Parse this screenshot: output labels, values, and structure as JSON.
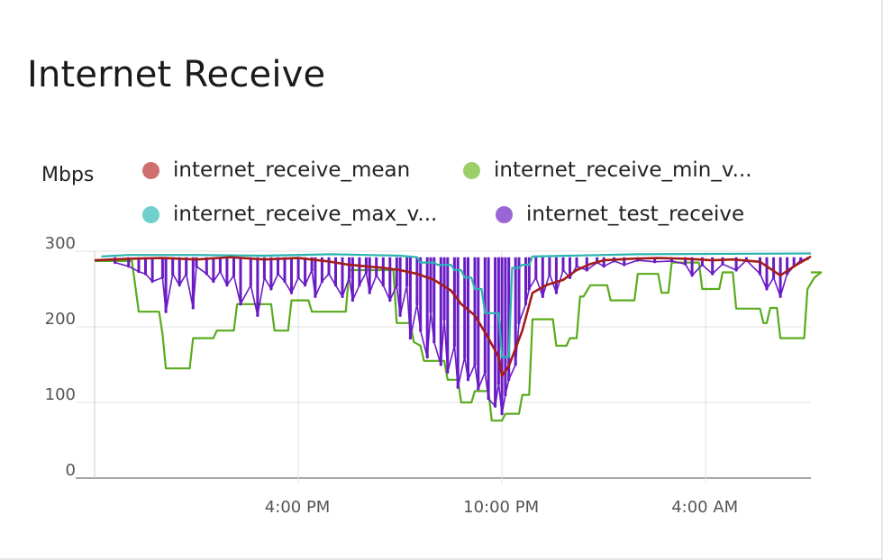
{
  "title": "Internet Receive",
  "chart_data": {
    "type": "line",
    "title": "Internet Receive",
    "ylabel": "Mbps",
    "xlabel": "",
    "ylim": [
      0,
      300
    ],
    "yticks": [
      0,
      100,
      200,
      300
    ],
    "xlim": [
      10.0,
      31.1
    ],
    "xticks": [
      {
        "value": 16,
        "label": "4:00 PM"
      },
      {
        "value": 22,
        "label": "10:00 PM"
      },
      {
        "value": 28,
        "label": "4:00 AM"
      }
    ],
    "x_unit": "hours since previous midnight",
    "grid": true,
    "legend_position": "top",
    "series": [
      {
        "name": "internet_receive_mean",
        "legend_label": "internet_receive_mean",
        "color": "#a31c1c",
        "style": "line",
        "points": [
          [
            10.0,
            288
          ],
          [
            11.0,
            290
          ],
          [
            12.0,
            291
          ],
          [
            13.0,
            289
          ],
          [
            14.0,
            292
          ],
          [
            15.0,
            289
          ],
          [
            16.0,
            291
          ],
          [
            16.8,
            287
          ],
          [
            17.5,
            282
          ],
          [
            18.0,
            280
          ],
          [
            18.5,
            278
          ],
          [
            19.0,
            275
          ],
          [
            19.5,
            270
          ],
          [
            20.0,
            262
          ],
          [
            20.5,
            248
          ],
          [
            20.8,
            230
          ],
          [
            21.2,
            215
          ],
          [
            21.6,
            185
          ],
          [
            21.9,
            160
          ],
          [
            22.0,
            135
          ],
          [
            22.2,
            148
          ],
          [
            22.6,
            195
          ],
          [
            22.9,
            245
          ],
          [
            23.3,
            255
          ],
          [
            23.8,
            262
          ],
          [
            24.2,
            275
          ],
          [
            24.6,
            283
          ],
          [
            25.0,
            288
          ],
          [
            25.8,
            290
          ],
          [
            26.6,
            291
          ],
          [
            27.4,
            290
          ],
          [
            28.2,
            288
          ],
          [
            28.8,
            289
          ],
          [
            29.6,
            286
          ],
          [
            30.2,
            268
          ],
          [
            30.6,
            280
          ],
          [
            31.1,
            293
          ]
        ]
      },
      {
        "name": "internet_receive_min_value",
        "legend_label": "internet_receive_min_v...",
        "color": "#5aab1e",
        "style": "step",
        "points": [
          [
            10.0,
            287
          ],
          [
            11.1,
            287
          ],
          [
            11.3,
            220
          ],
          [
            11.9,
            220
          ],
          [
            12.0,
            190
          ],
          [
            12.1,
            145
          ],
          [
            12.8,
            145
          ],
          [
            12.9,
            185
          ],
          [
            13.5,
            185
          ],
          [
            13.6,
            195
          ],
          [
            14.1,
            195
          ],
          [
            14.2,
            230
          ],
          [
            15.2,
            230
          ],
          [
            15.3,
            195
          ],
          [
            15.7,
            195
          ],
          [
            15.8,
            235
          ],
          [
            16.3,
            235
          ],
          [
            16.4,
            220
          ],
          [
            17.4,
            220
          ],
          [
            17.5,
            275
          ],
          [
            18.8,
            275
          ],
          [
            18.9,
            205
          ],
          [
            19.3,
            205
          ],
          [
            19.4,
            180
          ],
          [
            19.6,
            175
          ],
          [
            19.7,
            155
          ],
          [
            20.3,
            155
          ],
          [
            20.4,
            130
          ],
          [
            20.7,
            130
          ],
          [
            20.8,
            100
          ],
          [
            21.1,
            100
          ],
          [
            21.2,
            115
          ],
          [
            21.6,
            115
          ],
          [
            21.7,
            76
          ],
          [
            22.0,
            76
          ],
          [
            22.1,
            85
          ],
          [
            22.5,
            85
          ],
          [
            22.6,
            110
          ],
          [
            22.8,
            110
          ],
          [
            22.9,
            210
          ],
          [
            23.5,
            210
          ],
          [
            23.6,
            175
          ],
          [
            23.9,
            175
          ],
          [
            24.0,
            185
          ],
          [
            24.2,
            185
          ],
          [
            24.3,
            240
          ],
          [
            24.4,
            240
          ],
          [
            24.6,
            255
          ],
          [
            25.1,
            255
          ],
          [
            25.2,
            235
          ],
          [
            25.9,
            235
          ],
          [
            26.0,
            270
          ],
          [
            26.6,
            270
          ],
          [
            26.7,
            245
          ],
          [
            26.9,
            245
          ],
          [
            27.0,
            285
          ],
          [
            27.8,
            285
          ],
          [
            27.9,
            250
          ],
          [
            28.4,
            250
          ],
          [
            28.5,
            272
          ],
          [
            28.8,
            272
          ],
          [
            28.9,
            224
          ],
          [
            29.6,
            224
          ],
          [
            29.7,
            205
          ],
          [
            29.8,
            205
          ],
          [
            29.9,
            225
          ],
          [
            30.1,
            225
          ],
          [
            30.2,
            185
          ],
          [
            30.9,
            185
          ],
          [
            31.0,
            250
          ],
          [
            31.2,
            265
          ],
          [
            31.4,
            272
          ],
          [
            31.1,
            272
          ]
        ]
      },
      {
        "name": "internet_receive_max_value",
        "legend_label": "internet_receive_max_v...",
        "color": "#2bb4b0",
        "style": "step",
        "points": [
          [
            10.2,
            293
          ],
          [
            11.0,
            295
          ],
          [
            13.0,
            295
          ],
          [
            15.0,
            294
          ],
          [
            17.0,
            296
          ],
          [
            18.0,
            295
          ],
          [
            19.0,
            294
          ],
          [
            19.5,
            292
          ],
          [
            19.6,
            285
          ],
          [
            20.0,
            285
          ],
          [
            20.1,
            282
          ],
          [
            20.5,
            282
          ],
          [
            20.6,
            275
          ],
          [
            20.8,
            275
          ],
          [
            20.9,
            265
          ],
          [
            21.1,
            265
          ],
          [
            21.2,
            250
          ],
          [
            21.4,
            250
          ],
          [
            21.5,
            218
          ],
          [
            21.9,
            218
          ],
          [
            22.0,
            160
          ],
          [
            22.2,
            160
          ],
          [
            22.3,
            278
          ],
          [
            22.5,
            278
          ],
          [
            22.6,
            282
          ],
          [
            22.8,
            282
          ],
          [
            22.9,
            293
          ],
          [
            24.0,
            294
          ],
          [
            26.0,
            296
          ],
          [
            31.1,
            297
          ]
        ]
      },
      {
        "name": "internet_test_receive",
        "legend_label": "internet_test_receive",
        "color": "#6a1cc4",
        "style": "spikes",
        "points": [
          [
            10.6,
            285
          ],
          [
            11.0,
            280
          ],
          [
            11.3,
            273
          ],
          [
            11.5,
            270
          ],
          [
            11.7,
            260
          ],
          [
            12.0,
            265
          ],
          [
            12.1,
            220
          ],
          [
            12.3,
            270
          ],
          [
            12.5,
            255
          ],
          [
            12.7,
            270
          ],
          [
            12.9,
            225
          ],
          [
            13.0,
            280
          ],
          [
            13.3,
            270
          ],
          [
            13.5,
            260
          ],
          [
            13.7,
            273
          ],
          [
            13.9,
            255
          ],
          [
            14.1,
            268
          ],
          [
            14.3,
            230
          ],
          [
            14.6,
            255
          ],
          [
            14.8,
            215
          ],
          [
            15.0,
            265
          ],
          [
            15.2,
            250
          ],
          [
            15.4,
            270
          ],
          [
            15.6,
            260
          ],
          [
            15.8,
            245
          ],
          [
            16.0,
            265
          ],
          [
            16.2,
            255
          ],
          [
            16.4,
            275
          ],
          [
            16.5,
            240
          ],
          [
            16.7,
            260
          ],
          [
            16.9,
            270
          ],
          [
            17.1,
            255
          ],
          [
            17.3,
            240
          ],
          [
            17.5,
            265
          ],
          [
            17.6,
            235
          ],
          [
            17.8,
            255
          ],
          [
            18.0,
            272
          ],
          [
            18.1,
            245
          ],
          [
            18.3,
            268
          ],
          [
            18.5,
            255
          ],
          [
            18.7,
            235
          ],
          [
            18.9,
            255
          ],
          [
            19.0,
            215
          ],
          [
            19.2,
            255
          ],
          [
            19.3,
            185
          ],
          [
            19.5,
            230
          ],
          [
            19.6,
            195
          ],
          [
            19.8,
            160
          ],
          [
            19.9,
            220
          ],
          [
            20.0,
            180
          ],
          [
            20.2,
            150
          ],
          [
            20.3,
            210
          ],
          [
            20.4,
            140
          ],
          [
            20.6,
            175
          ],
          [
            20.7,
            120
          ],
          [
            20.9,
            160
          ],
          [
            21.0,
            130
          ],
          [
            21.2,
            150
          ],
          [
            21.3,
            118
          ],
          [
            21.5,
            140
          ],
          [
            21.6,
            105
          ],
          [
            21.8,
            95
          ],
          [
            21.9,
            125
          ],
          [
            22.0,
            85
          ],
          [
            22.1,
            110
          ],
          [
            22.2,
            130
          ],
          [
            22.4,
            150
          ],
          [
            22.5,
            205
          ],
          [
            22.7,
            230
          ],
          [
            22.8,
            250
          ],
          [
            23.0,
            265
          ],
          [
            23.2,
            240
          ],
          [
            23.4,
            270
          ],
          [
            23.6,
            245
          ],
          [
            23.8,
            275
          ],
          [
            24.0,
            265
          ],
          [
            24.2,
            280
          ],
          [
            24.5,
            275
          ],
          [
            24.8,
            285
          ],
          [
            25.0,
            280
          ],
          [
            25.3,
            287
          ],
          [
            25.6,
            282
          ],
          [
            26.0,
            288
          ],
          [
            26.5,
            286
          ],
          [
            27.0,
            287
          ],
          [
            27.4,
            283
          ],
          [
            27.6,
            268
          ],
          [
            27.9,
            282
          ],
          [
            28.2,
            270
          ],
          [
            28.5,
            283
          ],
          [
            28.9,
            275
          ],
          [
            29.2,
            288
          ],
          [
            29.6,
            270
          ],
          [
            29.8,
            250
          ],
          [
            30.0,
            265
          ],
          [
            30.2,
            240
          ],
          [
            30.4,
            270
          ],
          [
            30.6,
            280
          ],
          [
            30.8,
            288
          ],
          [
            31.0,
            290
          ]
        ]
      }
    ]
  },
  "legend": [
    {
      "label": "internet_receive_mean",
      "color": "#cf6f6f"
    },
    {
      "label": "internet_receive_min_v...",
      "color": "#9ccf6a"
    },
    {
      "label": "internet_receive_max_v...",
      "color": "#6fd0cc"
    },
    {
      "label": "internet_test_receive",
      "color": "#9a65d4"
    }
  ]
}
